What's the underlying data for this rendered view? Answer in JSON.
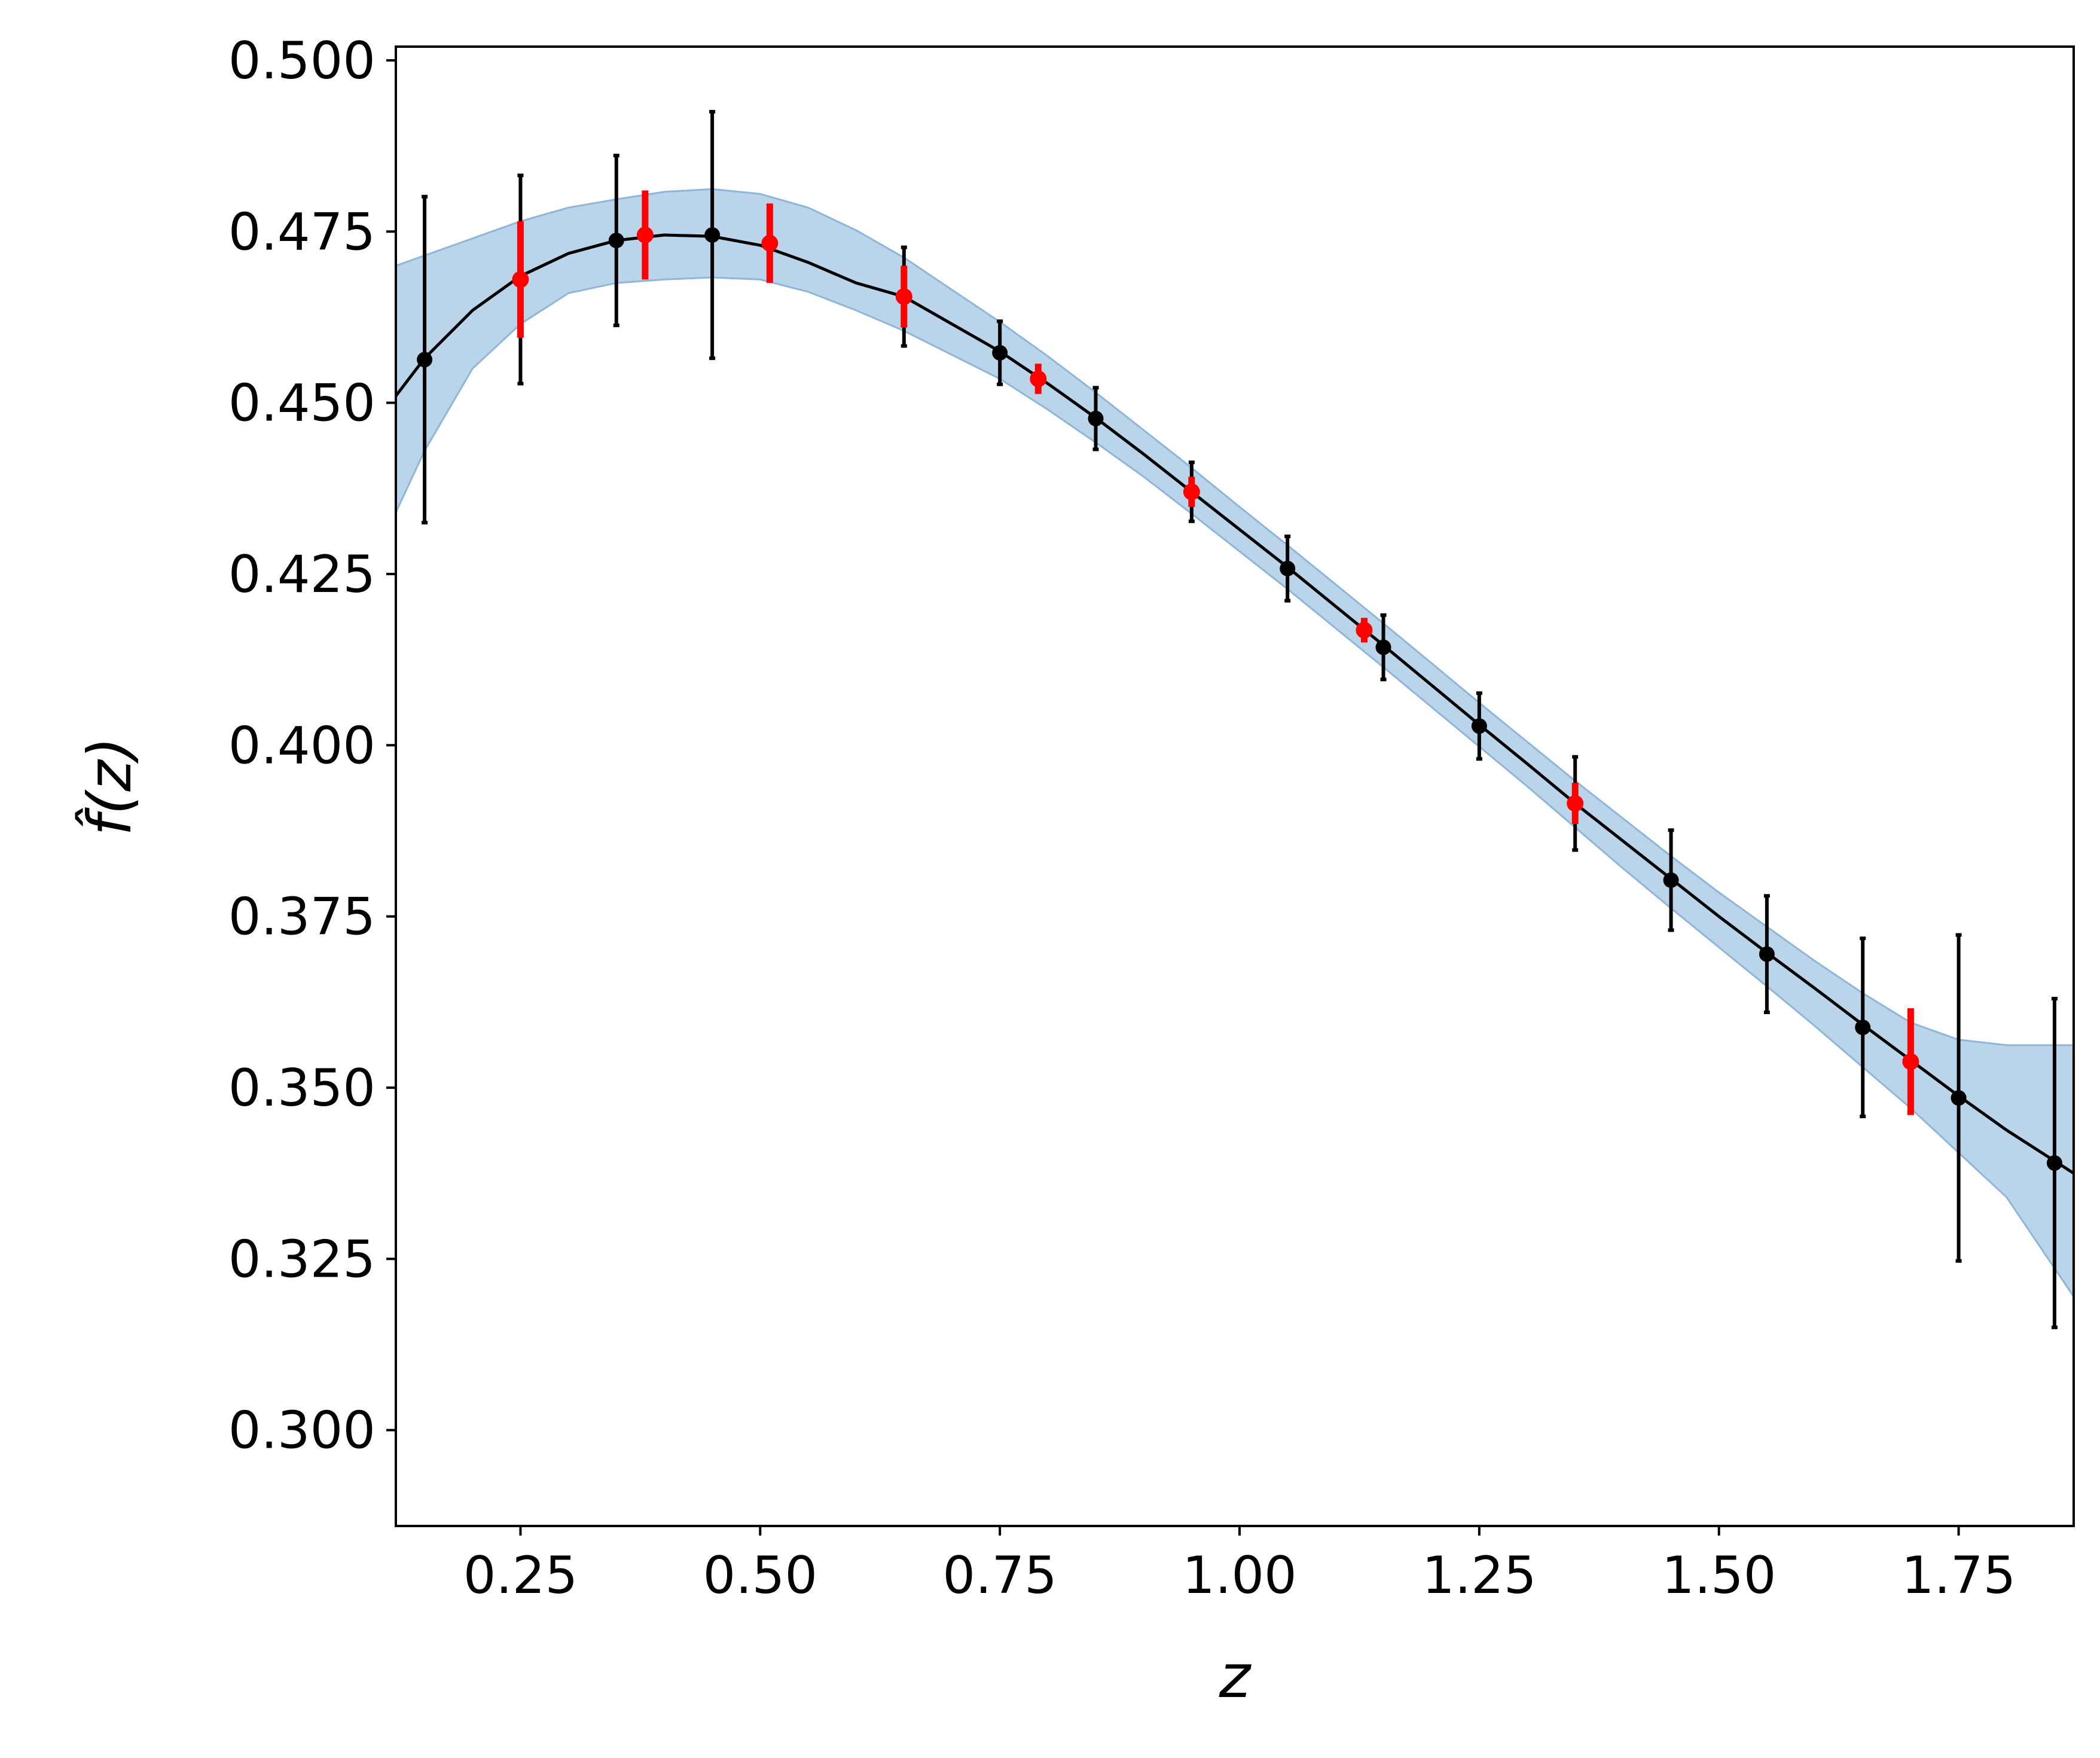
{
  "chart_data": {
    "type": "scatter",
    "xlabel": "z",
    "ylabel": "f̂(z)",
    "xlim": [
      0.12,
      1.87
    ],
    "ylim": [
      0.286,
      0.502
    ],
    "xticks": [
      "0.25",
      "0.50",
      "0.75",
      "1.00",
      "1.25",
      "1.50",
      "1.75"
    ],
    "yticks": [
      "0.300",
      "0.325",
      "0.350",
      "0.375",
      "0.400",
      "0.425",
      "0.450",
      "0.475",
      "0.500"
    ],
    "grid": false,
    "colors": {
      "band": "#a9c9e4",
      "band_edge": "#8fb6da",
      "curve": "#000000",
      "black_points": "#000000",
      "red_points": "#ff0000"
    },
    "curve": {
      "x": [
        0.12,
        0.15,
        0.2,
        0.25,
        0.3,
        0.35,
        0.4,
        0.45,
        0.5,
        0.55,
        0.6,
        0.65,
        0.7,
        0.75,
        0.8,
        0.85,
        0.9,
        0.95,
        1.0,
        1.05,
        1.1,
        1.15,
        1.2,
        1.25,
        1.3,
        1.35,
        1.4,
        1.45,
        1.5,
        1.55,
        1.6,
        1.65,
        1.7,
        1.75,
        1.8,
        1.87
      ],
      "y": [
        0.451,
        0.4565,
        0.4635,
        0.4685,
        0.4718,
        0.4737,
        0.4745,
        0.4743,
        0.473,
        0.4705,
        0.4675,
        0.4655,
        0.4615,
        0.4575,
        0.4528,
        0.4478,
        0.4425,
        0.437,
        0.4315,
        0.426,
        0.4203,
        0.4146,
        0.4088,
        0.403,
        0.3973,
        0.3915,
        0.386,
        0.3805,
        0.375,
        0.3697,
        0.3645,
        0.3592,
        0.354,
        0.3488,
        0.3438,
        0.3375
      ],
      "y_lower": [
        0.434,
        0.443,
        0.455,
        0.4615,
        0.466,
        0.4675,
        0.468,
        0.4683,
        0.468,
        0.4662,
        0.4635,
        0.4605,
        0.457,
        0.4535,
        0.449,
        0.4442,
        0.4392,
        0.4338,
        0.4283,
        0.4228,
        0.4171,
        0.4114,
        0.4056,
        0.3998,
        0.394,
        0.388,
        0.382,
        0.3762,
        0.3705,
        0.3648,
        0.359,
        0.353,
        0.347,
        0.3405,
        0.334,
        0.3195
      ],
      "y_upper": [
        0.47,
        0.4715,
        0.474,
        0.4765,
        0.4785,
        0.4797,
        0.4808,
        0.4812,
        0.4805,
        0.4785,
        0.4752,
        0.4712,
        0.4665,
        0.4618,
        0.4568,
        0.4515,
        0.446,
        0.4405,
        0.4348,
        0.4292,
        0.4235,
        0.4178,
        0.412,
        0.4062,
        0.4005,
        0.3948,
        0.3893,
        0.3838,
        0.3785,
        0.3735,
        0.3685,
        0.3638,
        0.3595,
        0.357,
        0.3562,
        0.3562
      ]
    },
    "series": [
      {
        "color": "black",
        "points": [
          {
            "x": 0.15,
            "y": 0.4563,
            "err": 0.0238
          },
          {
            "x": 0.25,
            "y": 0.468,
            "err": 0.0152
          },
          {
            "x": 0.35,
            "y": 0.4737,
            "err": 0.0124
          },
          {
            "x": 0.45,
            "y": 0.4745,
            "err": 0.018
          },
          {
            "x": 0.65,
            "y": 0.4655,
            "err": 0.0072
          },
          {
            "x": 0.75,
            "y": 0.4573,
            "err": 0.0046
          },
          {
            "x": 0.85,
            "y": 0.4477,
            "err": 0.0045
          },
          {
            "x": 0.95,
            "y": 0.437,
            "err": 0.0043
          },
          {
            "x": 1.05,
            "y": 0.4258,
            "err": 0.0047
          },
          {
            "x": 1.15,
            "y": 0.4143,
            "err": 0.0047
          },
          {
            "x": 1.25,
            "y": 0.4028,
            "err": 0.0048
          },
          {
            "x": 1.35,
            "y": 0.3915,
            "err": 0.0068
          },
          {
            "x": 1.45,
            "y": 0.3803,
            "err": 0.0073
          },
          {
            "x": 1.55,
            "y": 0.3695,
            "err": 0.0085
          },
          {
            "x": 1.65,
            "y": 0.3588,
            "err": 0.013
          },
          {
            "x": 1.75,
            "y": 0.3485,
            "err": 0.0238
          },
          {
            "x": 1.85,
            "y": 0.339,
            "err": 0.024
          }
        ]
      },
      {
        "color": "red",
        "points": [
          {
            "x": 0.25,
            "y": 0.468,
            "err": 0.0085
          },
          {
            "x": 0.38,
            "y": 0.4745,
            "err": 0.0065
          },
          {
            "x": 0.51,
            "y": 0.4733,
            "err": 0.0058
          },
          {
            "x": 0.65,
            "y": 0.4655,
            "err": 0.0045
          },
          {
            "x": 0.79,
            "y": 0.4535,
            "err": 0.0022
          },
          {
            "x": 0.95,
            "y": 0.437,
            "err": 0.0022
          },
          {
            "x": 1.13,
            "y": 0.4168,
            "err": 0.0018
          },
          {
            "x": 1.35,
            "y": 0.3915,
            "err": 0.003
          },
          {
            "x": 1.7,
            "y": 0.3538,
            "err": 0.0078
          }
        ]
      }
    ]
  }
}
